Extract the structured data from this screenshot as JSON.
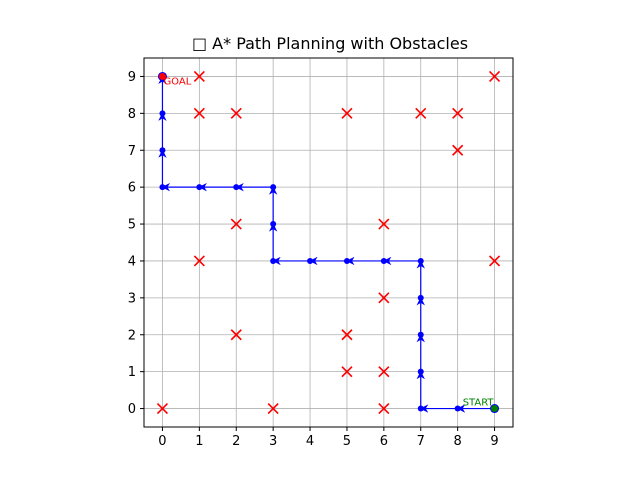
{
  "chart_data": {
    "type": "scatter",
    "title": "□ A* Path Planning with Obstacles",
    "xlabel": "",
    "ylabel": "",
    "xlim": [
      -0.5,
      9.5
    ],
    "ylim": [
      -0.5,
      9.5
    ],
    "xticks": [
      0,
      1,
      2,
      3,
      4,
      5,
      6,
      7,
      8,
      9
    ],
    "yticks": [
      0,
      1,
      2,
      3,
      4,
      5,
      6,
      7,
      8,
      9
    ],
    "grid": true,
    "aspect": "equal",
    "obstacles": [
      [
        1,
        9
      ],
      [
        9,
        9
      ],
      [
        1,
        8
      ],
      [
        2,
        8
      ],
      [
        5,
        8
      ],
      [
        7,
        8
      ],
      [
        8,
        8
      ],
      [
        8,
        7
      ],
      [
        2,
        5
      ],
      [
        6,
        5
      ],
      [
        1,
        4
      ],
      [
        9,
        4
      ],
      [
        6,
        3
      ],
      [
        2,
        2
      ],
      [
        5,
        2
      ],
      [
        5,
        1
      ],
      [
        6,
        1
      ],
      [
        0,
        0
      ],
      [
        3,
        0
      ],
      [
        6,
        0
      ]
    ],
    "path": [
      [
        9,
        0
      ],
      [
        8,
        0
      ],
      [
        7,
        0
      ],
      [
        7,
        1
      ],
      [
        7,
        2
      ],
      [
        7,
        3
      ],
      [
        7,
        4
      ],
      [
        6,
        4
      ],
      [
        5,
        4
      ],
      [
        4,
        4
      ],
      [
        3,
        4
      ],
      [
        3,
        5
      ],
      [
        3,
        6
      ],
      [
        2,
        6
      ],
      [
        1,
        6
      ],
      [
        0,
        6
      ],
      [
        0,
        7
      ],
      [
        0,
        8
      ],
      [
        0,
        9
      ]
    ],
    "start": {
      "x": 9,
      "y": 0,
      "label": "START"
    },
    "goal": {
      "x": 0,
      "y": 9,
      "label": "GOAL"
    },
    "colors": {
      "obstacle": "#ff0000",
      "path": "#0000ff",
      "start": "#008000",
      "goal": "#ff0000",
      "grid": "#b0b0b0",
      "axis": "#000000"
    }
  }
}
